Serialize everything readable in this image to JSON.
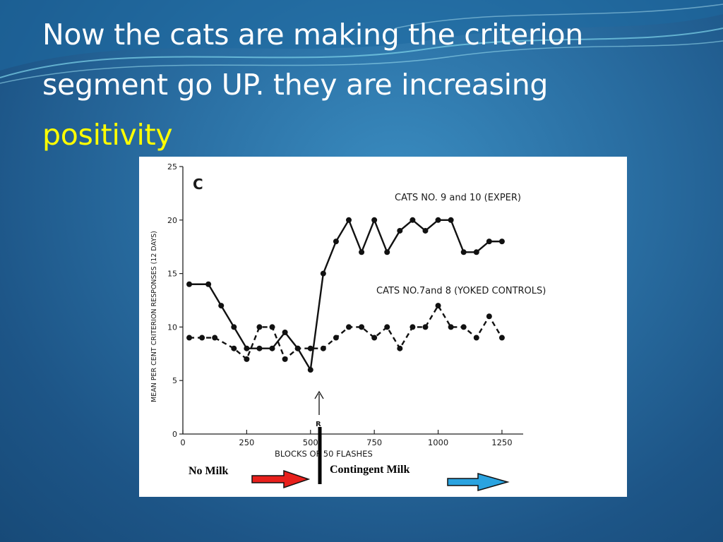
{
  "slide": {
    "title_main": "Now the cats are making the criterion segment go UP. they are increasing ",
    "title_highlight": "positivity"
  },
  "colors": {
    "highlight": "#ffff00",
    "red_arrow": "#e8201c",
    "blue_arrow": "#2aa3e0"
  },
  "chart_data": {
    "type": "line",
    "panel_label": "C",
    "ylabel": "MEAN PER CENT CRITERION RESPONSES (12 DAYS)",
    "xlabel": "BLOCKS OF 50 FLASHES",
    "xlim": [
      0,
      1300
    ],
    "ylim": [
      0,
      25
    ],
    "x_ticks": [
      "0",
      "250",
      "500",
      "750",
      "1000",
      "1250"
    ],
    "y_ticks": [
      "0",
      "5",
      "10",
      "15",
      "20",
      "25"
    ],
    "reinforcement_marker": "R",
    "series": [
      {
        "name": "CATS NO. 9 and 10 (EXPER)",
        "style": "solid",
        "x": [
          25,
          100,
          150,
          200,
          250,
          300,
          350,
          400,
          450,
          500,
          550,
          600,
          650,
          700,
          750,
          800,
          850,
          900,
          950,
          1000,
          1050,
          1100,
          1150,
          1200,
          1250
        ],
        "y": [
          14,
          14,
          12,
          10,
          8,
          8,
          8,
          9.5,
          8,
          6,
          15,
          18,
          20,
          17,
          20,
          17,
          19,
          20,
          19,
          20,
          20,
          17,
          17,
          18,
          18
        ]
      },
      {
        "name": "CATS NO.7and 8 (YOKED CONTROLS)",
        "style": "dashed",
        "x": [
          25,
          75,
          125,
          200,
          250,
          300,
          350,
          400,
          450,
          500,
          550,
          600,
          650,
          700,
          750,
          800,
          850,
          900,
          950,
          1000,
          1050,
          1100,
          1150,
          1200,
          1250
        ],
        "y": [
          9,
          9,
          9,
          8,
          7,
          10,
          10,
          7,
          8,
          8,
          8,
          9,
          10,
          10,
          9,
          10,
          8,
          10,
          10,
          12,
          10,
          10,
          9,
          11,
          9
        ]
      }
    ]
  },
  "conditions": {
    "before": "No Milk",
    "after": "Contingent Milk"
  }
}
